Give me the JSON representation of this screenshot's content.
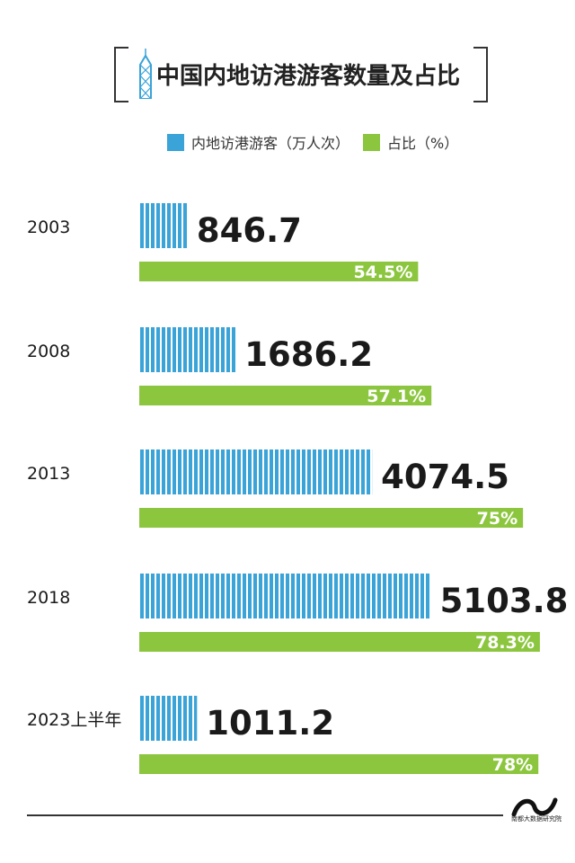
{
  "title": "中国内地访港游客数量及占比",
  "legend": {
    "visitors_label": "内地访港游客（万人次）",
    "share_label": "占比（%）"
  },
  "colors": {
    "visitors": "#3aa3d8",
    "share": "#8cc63f",
    "text_dark": "#1a1a1a"
  },
  "chart_data": {
    "type": "bar",
    "orientation": "horizontal",
    "categories": [
      "2003",
      "2008",
      "2013",
      "2018",
      "2023上半年"
    ],
    "series": [
      {
        "name": "内地访港游客（万人次）",
        "values": [
          846.7,
          1686.2,
          4074.5,
          5103.8,
          1011.2
        ],
        "labels": [
          "846.7",
          "1686.2",
          "4074.5",
          "5103.8",
          "1011.2"
        ]
      },
      {
        "name": "占比（%）",
        "values": [
          54.5,
          57.1,
          75,
          78.3,
          78
        ],
        "labels": [
          "54.5%",
          "57.1%",
          "75%",
          "78.3%",
          "78%"
        ]
      }
    ],
    "title": "中国内地访港游客数量及占比"
  },
  "footer": {
    "logo_text": "南都大数据研究院"
  }
}
